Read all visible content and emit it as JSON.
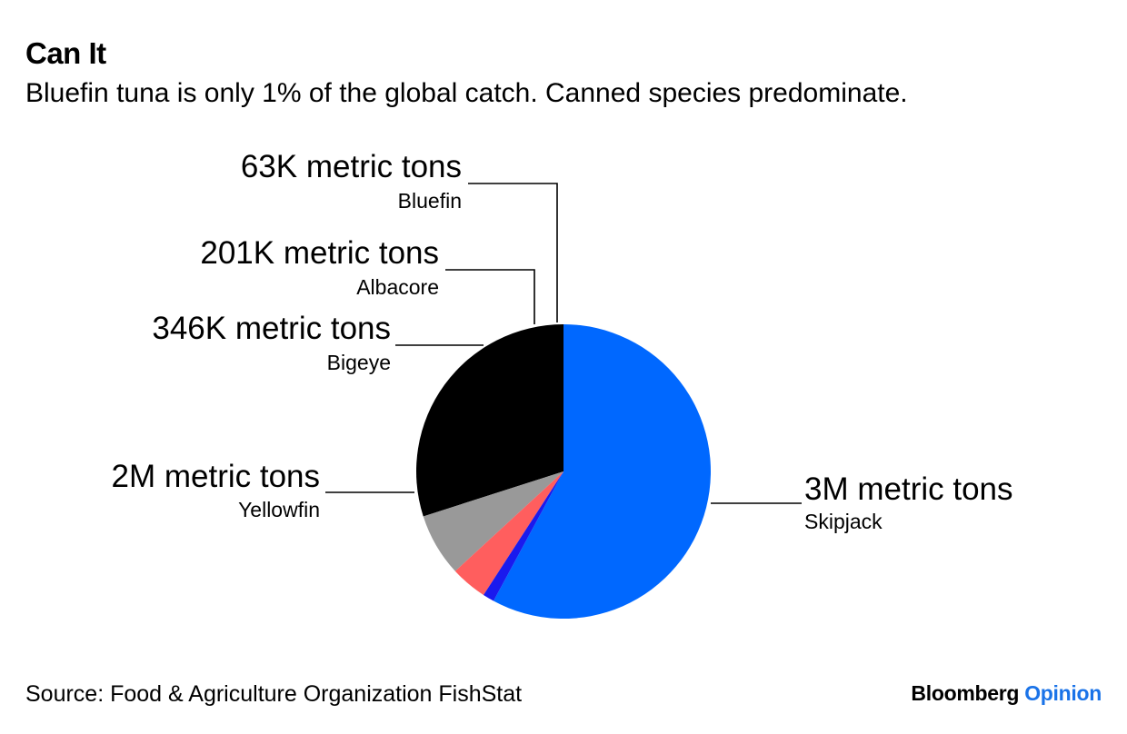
{
  "header": {
    "title": "Can It",
    "subtitle": "Bluefin tuna is only 1% of the global catch. Canned species predominate."
  },
  "footer": {
    "source": "Source: Food & Agriculture Organization FishStat",
    "brand_primary": "Bloomberg",
    "brand_secondary": "Opinion"
  },
  "chart_data": {
    "type": "pie",
    "title": "Can It",
    "subtitle": "Bluefin tuna is only 1% of the global catch. Canned species predominate.",
    "unit": "metric tons",
    "slices": [
      {
        "name": "Skipjack",
        "value": 2900000,
        "label": "3M metric tons",
        "color": "#0068ff"
      },
      {
        "name": "Yellowfin",
        "value": 1500000,
        "label": "2M metric tons",
        "color": "#000000"
      },
      {
        "name": "Bigeye",
        "value": 346000,
        "label": "346K metric tons",
        "color": "#999999"
      },
      {
        "name": "Albacore",
        "value": 201000,
        "label": "201K metric tons",
        "color": "#ff5e5e"
      },
      {
        "name": "Bluefin",
        "value": 63000,
        "label": "63K metric tons",
        "color": "#1a1aee"
      }
    ]
  }
}
